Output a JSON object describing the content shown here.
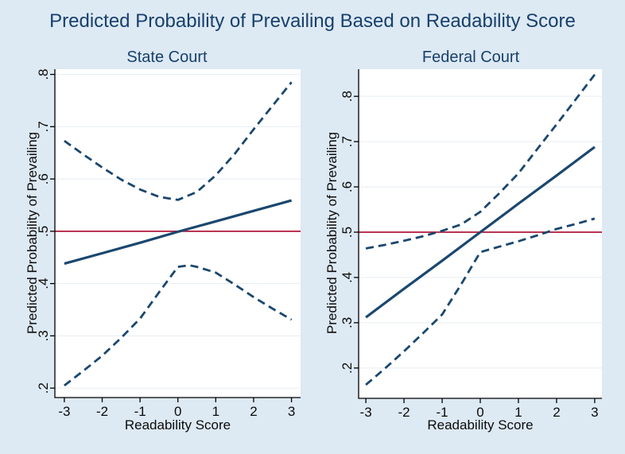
{
  "title": "Predicted Probability of Prevailing Based on Readability Score",
  "colors": {
    "background": "#dde9f3",
    "plot_background": "#ffffff",
    "grid": "#e6edf3",
    "axis": "#000000",
    "tick_text": "#0b0b0b",
    "title_navy": "#17406d",
    "line_navy": "#1a476f",
    "ref_line_maroon": "#b0173a"
  },
  "chart_data": [
    {
      "type": "line",
      "title": "State Court",
      "xlabel": "Readability Score",
      "ylabel": "Predicted Probability of Prevailing",
      "xlim": [
        -3.25,
        3.24
      ],
      "ylim": [
        0.182,
        0.81
      ],
      "x_ticks": [
        -3,
        -2,
        -1,
        0,
        1,
        2,
        3
      ],
      "x_tick_labels": [
        "-3",
        "-2",
        "-1",
        "0",
        "1",
        "2",
        "3"
      ],
      "y_ticks": [
        0.2,
        0.3,
        0.4,
        0.5,
        0.6,
        0.7,
        0.8
      ],
      "y_tick_labels": [
        ".2",
        ".3",
        ".4",
        ".5",
        ".6",
        ".7",
        ".8"
      ],
      "grid": "horizontal",
      "legend": "none",
      "ref_line": {
        "y": 0.5,
        "color": "#b0173a"
      },
      "series": [
        {
          "name": "Predicted probability",
          "style": "solid",
          "color": "#1a476f",
          "points": [
            [
              -3,
              0.438
            ],
            [
              -2,
              0.458
            ],
            [
              -1,
              0.478
            ],
            [
              0,
              0.499
            ],
            [
              1,
              0.519
            ],
            [
              2,
              0.539
            ],
            [
              3,
              0.559
            ]
          ]
        },
        {
          "name": "Upper confidence bound",
          "style": "dashed",
          "color": "#1a476f",
          "points": [
            [
              -3,
              0.673
            ],
            [
              -2.5,
              0.647
            ],
            [
              -2,
              0.622
            ],
            [
              -1.5,
              0.599
            ],
            [
              -1,
              0.58
            ],
            [
              -0.5,
              0.566
            ],
            [
              0,
              0.56
            ],
            [
              0.5,
              0.575
            ],
            [
              1,
              0.607
            ],
            [
              1.5,
              0.648
            ],
            [
              2,
              0.695
            ],
            [
              2.5,
              0.74
            ],
            [
              3,
              0.785
            ]
          ]
        },
        {
          "name": "Lower confidence bound",
          "style": "dashed",
          "color": "#1a476f",
          "points": [
            [
              -3,
              0.205
            ],
            [
              -2.5,
              0.233
            ],
            [
              -2,
              0.262
            ],
            [
              -1.5,
              0.296
            ],
            [
              -1,
              0.333
            ],
            [
              -0.5,
              0.383
            ],
            [
              0,
              0.432
            ],
            [
              0.3,
              0.435
            ],
            [
              0.5,
              0.432
            ],
            [
              1,
              0.421
            ],
            [
              1.5,
              0.398
            ],
            [
              2,
              0.374
            ],
            [
              2.5,
              0.352
            ],
            [
              3,
              0.331
            ]
          ]
        }
      ]
    },
    {
      "type": "line",
      "title": "Federal Court",
      "xlabel": "Readability Score",
      "ylabel": "Predicted Probability of Prevailing",
      "xlim": [
        -3.19,
        3.19
      ],
      "ylim": [
        0.133,
        0.86
      ],
      "x_ticks": [
        -3,
        -2,
        -1,
        0,
        1,
        2,
        3
      ],
      "x_tick_labels": [
        "-3",
        "-2",
        "-1",
        "0",
        "1",
        "2",
        "3"
      ],
      "y_ticks": [
        0.2,
        0.3,
        0.4,
        0.5,
        0.6,
        0.7,
        0.8
      ],
      "y_tick_labels": [
        ".2",
        ".3",
        ".4",
        ".5",
        ".6",
        ".7",
        ".8"
      ],
      "grid": "horizontal",
      "legend": "none",
      "ref_line": {
        "y": 0.5,
        "color": "#b0173a"
      },
      "series": [
        {
          "name": "Predicted probability",
          "style": "solid",
          "color": "#1a476f",
          "points": [
            [
              -3,
              0.312
            ],
            [
              -2,
              0.375
            ],
            [
              -1,
              0.437
            ],
            [
              0,
              0.5
            ],
            [
              1,
              0.563
            ],
            [
              2,
              0.625
            ],
            [
              3,
              0.688
            ]
          ]
        },
        {
          "name": "Upper confidence bound",
          "style": "dashed",
          "color": "#1a476f",
          "points": [
            [
              -3,
              0.464
            ],
            [
              -2.5,
              0.472
            ],
            [
              -2,
              0.481
            ],
            [
              -1.5,
              0.491
            ],
            [
              -1,
              0.503
            ],
            [
              -0.5,
              0.517
            ],
            [
              0,
              0.545
            ],
            [
              0.5,
              0.586
            ],
            [
              1,
              0.63
            ],
            [
              1.5,
              0.684
            ],
            [
              2,
              0.738
            ],
            [
              2.5,
              0.793
            ],
            [
              3,
              0.848
            ]
          ]
        },
        {
          "name": "Lower confidence bound",
          "style": "dashed",
          "color": "#1a476f",
          "points": [
            [
              -3,
              0.163
            ],
            [
              -2.5,
              0.199
            ],
            [
              -2,
              0.237
            ],
            [
              -1.5,
              0.277
            ],
            [
              -1,
              0.318
            ],
            [
              -0.5,
              0.385
            ],
            [
              0,
              0.456
            ],
            [
              0.5,
              0.468
            ],
            [
              1,
              0.48
            ],
            [
              1.5,
              0.493
            ],
            [
              2,
              0.507
            ],
            [
              2.5,
              0.518
            ],
            [
              3,
              0.53
            ]
          ]
        }
      ]
    }
  ]
}
